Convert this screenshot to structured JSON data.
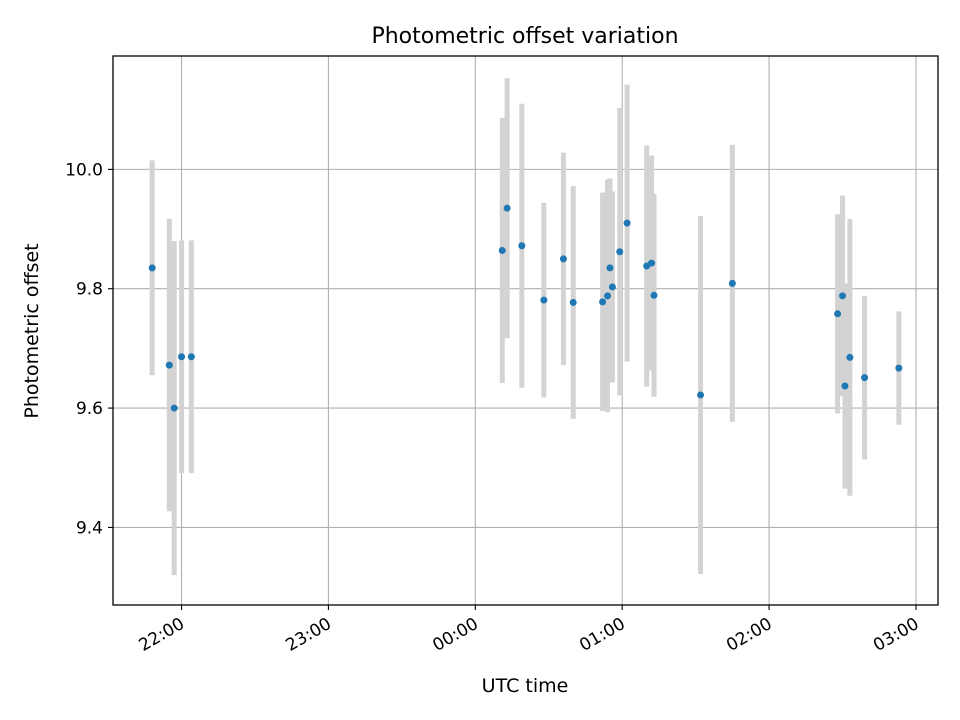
{
  "chart_data": {
    "type": "scatter",
    "title": "Photometric offset variation",
    "xlabel": "UTC time",
    "ylabel": "Photometric offset",
    "x_ticks": [
      "22:00",
      "23:00",
      "00:00",
      "01:00",
      "02:00",
      "03:00"
    ],
    "y_ticks": [
      "9.4",
      "9.6",
      "9.8",
      "10.0"
    ],
    "y_tick_values": [
      9.4,
      9.6,
      9.8,
      10.0
    ],
    "grid": true,
    "ylim": [
      9.27,
      10.19
    ],
    "xlim": [
      "21:32",
      "03:09"
    ],
    "colors": {
      "point": "#1f77b4",
      "errorbar": "#d3d3d3",
      "grid": "#b0b0b0"
    },
    "points": [
      {
        "x": "21:48",
        "y": 9.835,
        "err": 0.18
      },
      {
        "x": "21:55",
        "y": 9.672,
        "err": 0.245
      },
      {
        "x": "21:57",
        "y": 9.6,
        "err": 0.28
      },
      {
        "x": "22:00",
        "y": 9.686,
        "err": 0.195
      },
      {
        "x": "22:04",
        "y": 9.686,
        "err": 0.195
      },
      {
        "x": "00:11",
        "y": 9.864,
        "err": 0.222
      },
      {
        "x": "00:13",
        "y": 9.935,
        "err": 0.218
      },
      {
        "x": "00:19",
        "y": 9.872,
        "err": 0.238
      },
      {
        "x": "00:28",
        "y": 9.781,
        "err": 0.163
      },
      {
        "x": "00:36",
        "y": 9.85,
        "err": 0.178
      },
      {
        "x": "00:40",
        "y": 9.777,
        "err": 0.195
      },
      {
        "x": "00:52",
        "y": 9.778,
        "err": 0.183
      },
      {
        "x": "00:54",
        "y": 9.788,
        "err": 0.195
      },
      {
        "x": "00:55",
        "y": 9.835,
        "err": 0.15
      },
      {
        "x": "00:56",
        "y": 9.803,
        "err": 0.16
      },
      {
        "x": "00:59",
        "y": 9.862,
        "err": 0.241
      },
      {
        "x": "01:02",
        "y": 9.91,
        "err": 0.232
      },
      {
        "x": "01:10",
        "y": 9.838,
        "err": 0.202
      },
      {
        "x": "01:12",
        "y": 9.843,
        "err": 0.18
      },
      {
        "x": "01:13",
        "y": 9.789,
        "err": 0.17
      },
      {
        "x": "01:32",
        "y": 9.622,
        "err": 0.3
      },
      {
        "x": "01:45",
        "y": 9.809,
        "err": 0.232
      },
      {
        "x": "02:28",
        "y": 9.758,
        "err": 0.167
      },
      {
        "x": "02:30",
        "y": 9.788,
        "err": 0.168
      },
      {
        "x": "02:31",
        "y": 9.637,
        "err": 0.172
      },
      {
        "x": "02:33",
        "y": 9.685,
        "err": 0.232
      },
      {
        "x": "02:39",
        "y": 9.651,
        "err": 0.137
      },
      {
        "x": "02:53",
        "y": 9.667,
        "err": 0.095
      }
    ]
  }
}
